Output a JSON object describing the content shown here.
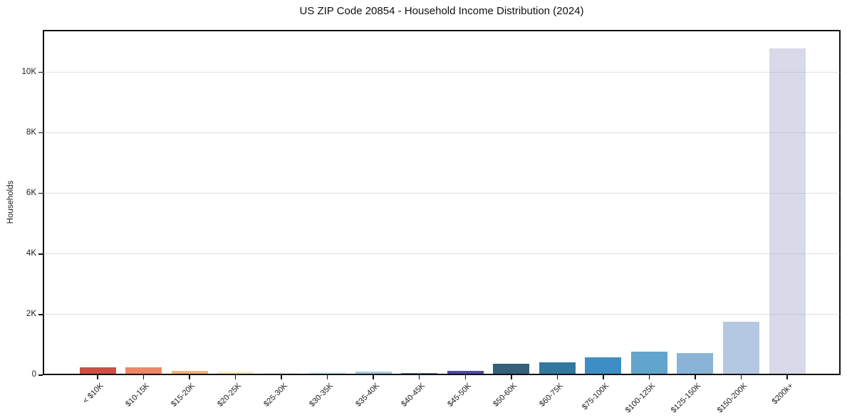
{
  "chart_data": {
    "type": "bar",
    "title": "US ZIP Code 20854 - Household Income Distribution (2024)",
    "xlabel": "",
    "ylabel": "Households",
    "categories": [
      "< $10K",
      "$10-15K",
      "$15-20K",
      "$20-25K",
      "$25-30K",
      "$30-35K",
      "$35-40K",
      "$40-45K",
      "$45-50K",
      "$50-60K",
      "$60-75K",
      "$75-100K",
      "$100-125K",
      "$125-150K",
      "$150-200K",
      "$200k+"
    ],
    "values": [
      270,
      250,
      140,
      115,
      60,
      85,
      120,
      75,
      150,
      375,
      435,
      590,
      775,
      730,
      1775,
      10800
    ],
    "bar_colors": [
      "#cf4e44",
      "#ee8767",
      "#f4b375",
      "#f7edbe",
      "#e7f2ec",
      "#d3e6f0",
      "#a5c8e1",
      "#5a77b4",
      "#4d49a3",
      "#34607a",
      "#33789f",
      "#3d8ec5",
      "#61a5cc",
      "#89b4d8",
      "#b4c8e2",
      "#d8dae9"
    ],
    "ytick_values": [
      0,
      2000,
      4000,
      6000,
      8000,
      10000
    ],
    "ytick_labels": [
      "0",
      "2K",
      "4K",
      "6K",
      "8K",
      "10K"
    ],
    "ylim": [
      0,
      11400
    ],
    "grid": "horizontal-light",
    "gridline_color": "#ececf1",
    "legend": "none",
    "background": "#ffffff",
    "text_color": "#1a1a1a",
    "frame": "full-box"
  }
}
